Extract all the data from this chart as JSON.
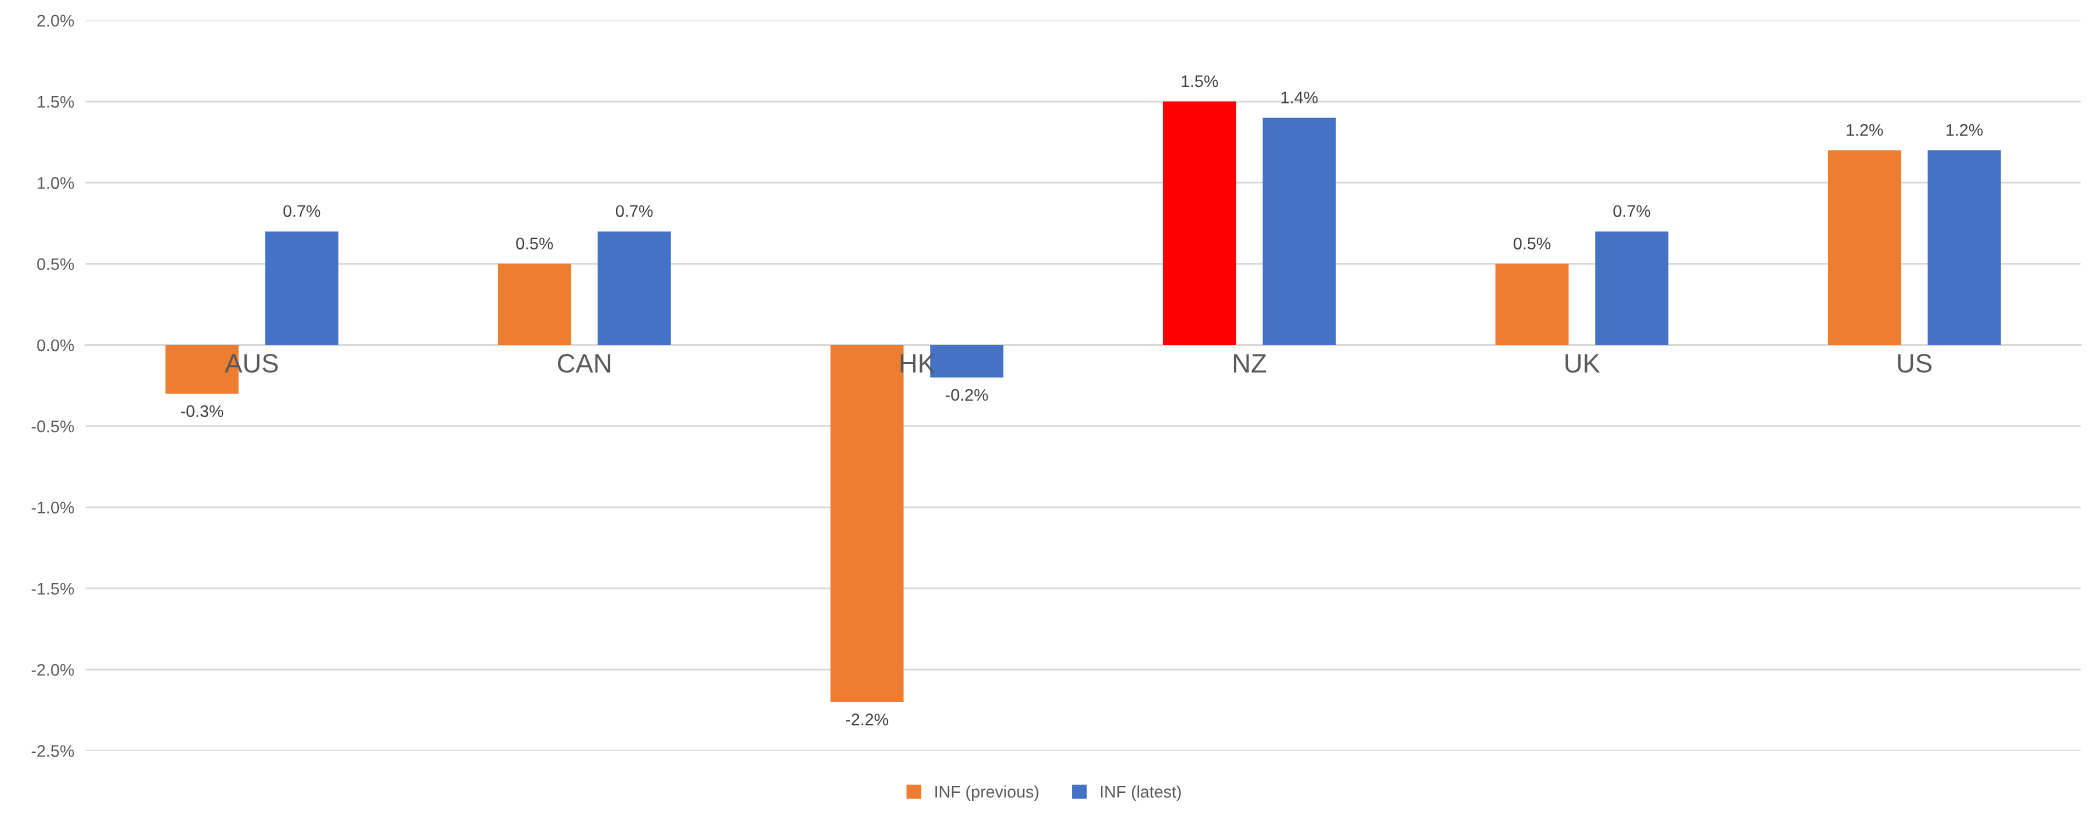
{
  "chart_data": {
    "type": "bar",
    "categories": [
      "AUS",
      "CAN",
      "HK",
      "NZ",
      "UK",
      "US"
    ],
    "series": [
      {
        "name": "INF (previous)",
        "color": "#ed7d31",
        "colors": [
          "#ed7d31",
          "#ed7d31",
          "#ed7d31",
          "#ff0000",
          "#ed7d31",
          "#ed7d31"
        ],
        "values": [
          -0.3,
          0.5,
          -2.2,
          1.5,
          0.5,
          1.2
        ],
        "value_labels": [
          "-0.3%",
          "0.5%",
          "-2.2%",
          "1.5%",
          "0.5%",
          "1.2%"
        ]
      },
      {
        "name": "INF (latest)",
        "color": "#4472c4",
        "values": [
          0.7,
          0.7,
          -0.2,
          1.4,
          0.7,
          1.2
        ],
        "value_labels": [
          "0.7%",
          "0.7%",
          "-0.2%",
          "1.4%",
          "0.7%",
          "1.2%"
        ]
      }
    ],
    "ylim": [
      -2.5,
      2.0
    ],
    "yticks": [
      {
        "value": -2.5,
        "label": "-2.5%"
      },
      {
        "value": -2.0,
        "label": "-2.0%"
      },
      {
        "value": -1.5,
        "label": "-1.5%"
      },
      {
        "value": -1.0,
        "label": "-1.0%"
      },
      {
        "value": -0.5,
        "label": "-0.5%"
      },
      {
        "value": 0.0,
        "label": "0.0%"
      },
      {
        "value": 0.5,
        "label": "0.5%"
      },
      {
        "value": 1.0,
        "label": "1.0%"
      },
      {
        "value": 1.5,
        "label": "1.5%"
      },
      {
        "value": 2.0,
        "label": "2.0%"
      }
    ],
    "grid": "y",
    "legend": "bottom"
  }
}
